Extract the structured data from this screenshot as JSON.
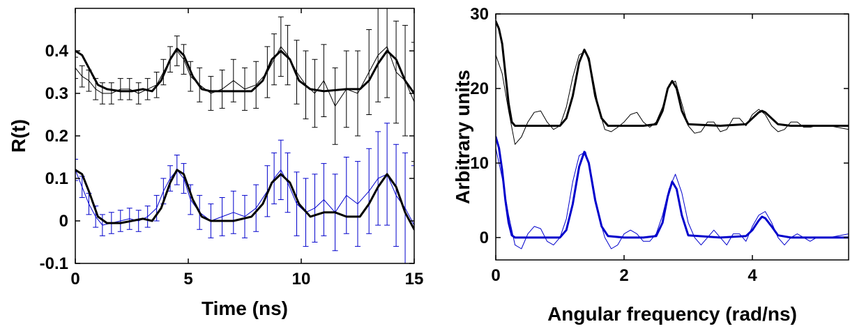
{
  "chart_data": [
    {
      "type": "line",
      "title": "",
      "xlabel": "Time (ns)",
      "ylabel": "R(t)",
      "xlim": [
        0,
        15
      ],
      "ylim": [
        -0.1,
        0.5
      ],
      "xticks": [
        0,
        5,
        10,
        15
      ],
      "xtick_labels": [
        "0",
        "5",
        "10",
        "15"
      ],
      "yticks": [
        -0.1,
        0,
        0.1,
        0.2,
        0.3,
        0.4
      ],
      "ytick_labels": [
        "-0.1",
        "0",
        "0.1",
        "0.2",
        "0.3",
        "0.4"
      ],
      "grid": false,
      "legend": "none",
      "series": [
        {
          "style": "errorbar-data",
          "color": "#000000",
          "x": [
            0,
            0.3,
            0.6,
            0.9,
            1.2,
            1.6,
            2,
            2.4,
            2.8,
            3.2,
            3.6,
            3.9,
            4.2,
            4.5,
            4.8,
            5.1,
            5.5,
            6,
            6.5,
            7,
            7.5,
            8,
            8.5,
            8.8,
            9.1,
            9.4,
            9.8,
            10.2,
            10.6,
            11,
            11.5,
            12,
            12.5,
            13,
            13.4,
            13.8,
            14.2,
            14.6,
            15
          ],
          "y": [
            0.36,
            0.34,
            0.33,
            0.31,
            0.3,
            0.3,
            0.31,
            0.31,
            0.3,
            0.31,
            0.32,
            0.35,
            0.38,
            0.4,
            0.38,
            0.34,
            0.32,
            0.3,
            0.31,
            0.33,
            0.31,
            0.32,
            0.35,
            0.38,
            0.41,
            0.39,
            0.35,
            0.32,
            0.3,
            0.33,
            0.27,
            0.31,
            0.3,
            0.35,
            0.39,
            0.41,
            0.35,
            0.33,
            0.28
          ],
          "err": [
            0.025,
            0.025,
            0.025,
            0.025,
            0.025,
            0.025,
            0.025,
            0.025,
            0.025,
            0.025,
            0.03,
            0.03,
            0.03,
            0.035,
            0.035,
            0.035,
            0.04,
            0.04,
            0.045,
            0.05,
            0.05,
            0.055,
            0.06,
            0.06,
            0.07,
            0.07,
            0.075,
            0.08,
            0.08,
            0.085,
            0.09,
            0.09,
            0.1,
            0.1,
            0.11,
            0.12,
            0.12,
            0.13,
            0.14
          ]
        },
        {
          "style": "fit-line",
          "color": "#000000",
          "x": [
            0,
            0.3,
            0.6,
            1,
            1.4,
            2,
            2.5,
            3,
            3.4,
            3.8,
            4.2,
            4.5,
            4.8,
            5.2,
            5.6,
            6,
            7,
            7.8,
            8.3,
            8.7,
            9.1,
            9.5,
            9.9,
            10.4,
            11,
            12,
            12.6,
            13,
            13.4,
            13.8,
            14.2,
            14.6,
            15
          ],
          "y": [
            0.4,
            0.39,
            0.36,
            0.32,
            0.31,
            0.305,
            0.305,
            0.31,
            0.305,
            0.33,
            0.38,
            0.405,
            0.39,
            0.34,
            0.31,
            0.305,
            0.305,
            0.305,
            0.33,
            0.38,
            0.4,
            0.38,
            0.33,
            0.31,
            0.305,
            0.31,
            0.31,
            0.33,
            0.37,
            0.4,
            0.38,
            0.33,
            0.3
          ]
        },
        {
          "style": "errorbar-data",
          "color": "#0000cc",
          "x": [
            0,
            0.3,
            0.6,
            0.9,
            1.2,
            1.6,
            2,
            2.4,
            2.8,
            3.2,
            3.6,
            3.9,
            4.2,
            4.5,
            4.8,
            5.1,
            5.5,
            6,
            6.5,
            7,
            7.5,
            8,
            8.5,
            8.8,
            9.1,
            9.4,
            9.8,
            10.2,
            10.6,
            11,
            11.5,
            12,
            12.5,
            13,
            13.4,
            13.8,
            14.2,
            14.6,
            15
          ],
          "y": [
            0.12,
            0.08,
            0.04,
            0.01,
            -0.01,
            -0.005,
            0.0,
            0.005,
            0.0,
            0.01,
            0.03,
            0.07,
            0.1,
            0.12,
            0.1,
            0.05,
            0.02,
            0.0,
            0.01,
            0.02,
            0.01,
            0.03,
            0.07,
            0.1,
            0.12,
            0.09,
            0.04,
            0.02,
            0.03,
            0.05,
            0.02,
            0.06,
            0.04,
            0.07,
            0.1,
            0.11,
            0.06,
            0.03,
            -0.01
          ],
          "err": [
            0.025,
            0.025,
            0.025,
            0.025,
            0.025,
            0.025,
            0.025,
            0.025,
            0.025,
            0.025,
            0.03,
            0.03,
            0.03,
            0.035,
            0.035,
            0.035,
            0.04,
            0.04,
            0.045,
            0.05,
            0.05,
            0.055,
            0.06,
            0.06,
            0.07,
            0.07,
            0.075,
            0.08,
            0.08,
            0.085,
            0.09,
            0.09,
            0.1,
            0.1,
            0.11,
            0.12,
            0.12,
            0.13,
            0.14
          ]
        },
        {
          "style": "fit-line",
          "color": "#000000",
          "x": [
            0,
            0.3,
            0.6,
            1,
            1.4,
            2,
            2.5,
            3,
            3.4,
            3.8,
            4.2,
            4.5,
            4.8,
            5.2,
            5.6,
            6,
            7,
            7.8,
            8.3,
            8.7,
            9.1,
            9.5,
            9.9,
            10.4,
            11,
            11.5,
            12,
            12.6,
            13,
            13.4,
            13.8,
            14.2,
            14.6,
            15
          ],
          "y": [
            0.12,
            0.11,
            0.07,
            0.01,
            -0.005,
            -0.005,
            0.0,
            0.005,
            0.0,
            0.03,
            0.09,
            0.12,
            0.11,
            0.05,
            0.01,
            0.0,
            0.0,
            0.01,
            0.04,
            0.09,
            0.11,
            0.09,
            0.04,
            0.01,
            0.02,
            0.02,
            0.01,
            0.01,
            0.04,
            0.08,
            0.11,
            0.08,
            0.02,
            -0.02
          ]
        }
      ]
    },
    {
      "type": "line",
      "title": "",
      "xlabel": "Angular frequency (rad/ns)",
      "ylabel": "Arbitrary units",
      "xlim": [
        0,
        5.5
      ],
      "ylim": [
        -3,
        30
      ],
      "xticks": [
        0,
        2,
        4
      ],
      "xtick_labels": [
        "0",
        "2",
        "4"
      ],
      "yticks": [
        0,
        10,
        20,
        30
      ],
      "ytick_labels": [
        "0",
        "10",
        "20",
        "30"
      ],
      "grid": false,
      "legend": "none",
      "series": [
        {
          "style": "thin-line",
          "color": "#000000",
          "x": [
            0,
            0.1,
            0.2,
            0.3,
            0.4,
            0.5,
            0.6,
            0.7,
            0.8,
            0.9,
            1.0,
            1.1,
            1.2,
            1.3,
            1.4,
            1.5,
            1.6,
            1.7,
            1.8,
            1.9,
            2.0,
            2.1,
            2.2,
            2.3,
            2.4,
            2.5,
            2.6,
            2.7,
            2.8,
            2.9,
            3.0,
            3.1,
            3.2,
            3.3,
            3.4,
            3.5,
            3.6,
            3.7,
            3.8,
            3.9,
            4.0,
            4.1,
            4.2,
            4.3,
            4.4,
            4.5,
            4.6,
            4.7,
            4.8,
            4.9,
            5.0,
            5.2,
            5.5
          ],
          "y": [
            24.5,
            22,
            17,
            12.5,
            13.5,
            15.5,
            16.8,
            17,
            15.5,
            14.5,
            15,
            17.5,
            21.5,
            24.5,
            25,
            22,
            17.5,
            14.5,
            14.2,
            14.8,
            15.5,
            16.5,
            16.8,
            15.5,
            14.8,
            15.5,
            17.5,
            20.5,
            21,
            18,
            15,
            14,
            14.2,
            15.5,
            15.5,
            14.2,
            14.5,
            16,
            16,
            15,
            16.5,
            17.2,
            16.5,
            15,
            14.2,
            14.5,
            15.5,
            15.5,
            14.8,
            14.8,
            15,
            15,
            14.5
          ]
        },
        {
          "style": "thick-line",
          "color": "#000000",
          "x": [
            0,
            0.05,
            0.1,
            0.15,
            0.2,
            0.25,
            0.3,
            0.5,
            0.8,
            1.0,
            1.1,
            1.2,
            1.3,
            1.38,
            1.45,
            1.55,
            1.65,
            1.75,
            2.0,
            2.3,
            2.5,
            2.6,
            2.68,
            2.75,
            2.82,
            2.9,
            3.0,
            3.5,
            3.9,
            4.0,
            4.1,
            4.15,
            4.2,
            4.3,
            4.4,
            4.6,
            5.0,
            5.5
          ],
          "y": [
            29,
            28,
            26,
            22,
            18,
            15.5,
            15,
            15,
            15,
            15,
            16,
            19,
            23.5,
            25.2,
            24,
            19,
            16,
            15,
            15,
            15,
            15.2,
            17,
            20,
            21,
            20,
            17,
            15.2,
            15,
            15.2,
            16,
            16.8,
            17,
            16.8,
            16,
            15.2,
            15,
            15,
            15
          ]
        },
        {
          "style": "thin-line",
          "color": "#0000cc",
          "x": [
            0,
            0.1,
            0.2,
            0.3,
            0.4,
            0.5,
            0.6,
            0.7,
            0.8,
            0.9,
            1.0,
            1.1,
            1.2,
            1.3,
            1.4,
            1.5,
            1.6,
            1.7,
            1.8,
            1.9,
            2.0,
            2.1,
            2.2,
            2.3,
            2.4,
            2.5,
            2.6,
            2.7,
            2.8,
            2.9,
            3.0,
            3.1,
            3.2,
            3.3,
            3.4,
            3.5,
            3.6,
            3.7,
            3.8,
            3.9,
            4.0,
            4.1,
            4.2,
            4.3,
            4.4,
            4.5,
            4.6,
            4.7,
            4.8,
            4.9,
            5.0,
            5.2,
            5.5
          ],
          "y": [
            12,
            8,
            3,
            -1,
            -1.5,
            0.5,
            1.5,
            1.2,
            -0.5,
            -1,
            0,
            2.5,
            7.5,
            11,
            11.5,
            8,
            3,
            0,
            -1.5,
            -1,
            0.5,
            1,
            0.5,
            -0.5,
            -0.5,
            0.5,
            3,
            6.5,
            8.5,
            6,
            2,
            0,
            -1,
            0,
            1,
            0,
            -1,
            0.5,
            0.5,
            -0.5,
            1.5,
            3,
            3.5,
            2,
            0,
            -1,
            0,
            0.5,
            0,
            -0.5,
            0,
            0,
            0.5
          ]
        },
        {
          "style": "thick-line",
          "color": "#0000cc",
          "x": [
            0,
            0.05,
            0.1,
            0.15,
            0.2,
            0.25,
            0.3,
            0.5,
            0.8,
            1.0,
            1.1,
            1.2,
            1.3,
            1.38,
            1.45,
            1.55,
            1.65,
            1.75,
            2.0,
            2.3,
            2.5,
            2.6,
            2.68,
            2.75,
            2.82,
            2.9,
            3.0,
            3.5,
            3.9,
            4.0,
            4.1,
            4.15,
            4.2,
            4.3,
            4.4,
            4.6,
            5.0,
            5.5
          ],
          "y": [
            13.5,
            12,
            9,
            5,
            2,
            0.3,
            0,
            0,
            0,
            0,
            1,
            4.5,
            9.5,
            11.5,
            10,
            5,
            1.5,
            0.2,
            0,
            0,
            0.2,
            2,
            5.5,
            7.5,
            6.5,
            3,
            0.3,
            0,
            0.2,
            1,
            2.3,
            2.8,
            2.6,
            1.5,
            0.3,
            0,
            0,
            0
          ]
        }
      ]
    }
  ]
}
